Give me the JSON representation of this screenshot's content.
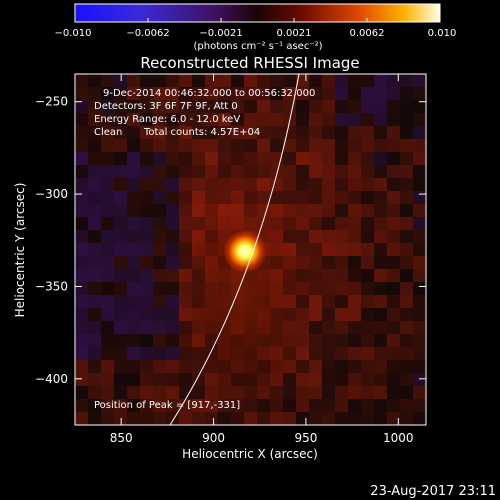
{
  "colorbar": {
    "ticks": [
      "−0.010",
      "−0.0062",
      "−0.0021",
      "0.0021",
      "0.0062",
      "0.010"
    ],
    "unit_label": "(photons cm⁻² s⁻¹ asec⁻²)"
  },
  "chart_data": {
    "type": "heatmap",
    "title": "Reconstructed RHESSI Image",
    "xlabel": "Heliocentric X (arcsec)",
    "ylabel": "Heliocentric Y (arcsec)",
    "xlim": [
      825,
      1015
    ],
    "ylim": [
      -425,
      -235
    ],
    "x_ticks": [
      850,
      900,
      950,
      1000
    ],
    "y_ticks": [
      -250,
      -300,
      -350,
      -400
    ],
    "x_tick_labels": [
      "850",
      "900",
      "950",
      "1000"
    ],
    "y_tick_labels": [
      "−250",
      "−300",
      "−350",
      "−400"
    ],
    "colorbar_range": [
      -0.01,
      0.01
    ],
    "peak": {
      "x": 917,
      "y": -331
    },
    "annotations": {
      "time_range": "9-Dec-2014 00:46:32.000 to 00:56:32.000",
      "detectors": "Detectors: 3F 6F 7F 9F, Att 0",
      "energy": "Energy Range: 6.0 - 12.0 keV",
      "method": "Clean",
      "counts": "Total counts: 4.57E+04",
      "peak_text": "Position of Peak = [917,-331]"
    }
  },
  "footer": {
    "timestamp": "23-Aug-2017 23:11"
  }
}
